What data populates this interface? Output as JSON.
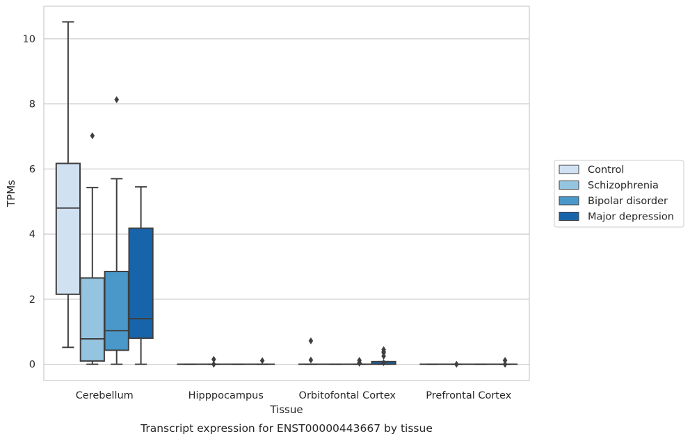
{
  "chart_data": {
    "type": "box",
    "title": "Transcript expression for ENST00000443667 by tissue",
    "xlabel": "Tissue",
    "ylabel": "TPMs",
    "ylim": [
      -0.5,
      11.0
    ],
    "yticks": [
      0,
      2,
      4,
      6,
      8,
      10
    ],
    "grid": true,
    "legend_position": "right",
    "categories": [
      "Cerebellum",
      "Hipppocampus",
      "Orbitofontal Cortex",
      "Prefrontal Cortex"
    ],
    "series": [
      {
        "name": "Control",
        "color": "#d0e1f2",
        "boxes": [
          {
            "whislo": 0.52,
            "q1": 2.15,
            "med": 4.8,
            "q3": 6.17,
            "whishi": 10.52,
            "fliers": []
          },
          {
            "whislo": 0,
            "q1": 0,
            "med": 0,
            "q3": 0,
            "whishi": 0,
            "fliers": []
          },
          {
            "whislo": 0,
            "q1": 0,
            "med": 0,
            "q3": 0,
            "whishi": 0,
            "fliers": [
              0.72,
              0.13
            ]
          },
          {
            "whislo": 0,
            "q1": 0,
            "med": 0,
            "q3": 0,
            "whishi": 0,
            "fliers": []
          }
        ]
      },
      {
        "name": "Schizophrenia",
        "color": "#94c4df",
        "boxes": [
          {
            "whislo": 0.0,
            "q1": 0.1,
            "med": 0.78,
            "q3": 2.65,
            "whishi": 5.43,
            "fliers": [
              7.02
            ]
          },
          {
            "whislo": 0,
            "q1": 0,
            "med": 0,
            "q3": 0,
            "whishi": 0,
            "fliers": [
              0.15,
              0.0
            ]
          },
          {
            "whislo": 0,
            "q1": 0,
            "med": 0,
            "q3": 0,
            "whishi": 0,
            "fliers": []
          },
          {
            "whislo": 0,
            "q1": 0,
            "med": 0,
            "q3": 0,
            "whishi": 0,
            "fliers": [
              0.0
            ]
          }
        ]
      },
      {
        "name": "Bipolar disorder",
        "color": "#4a98c9",
        "boxes": [
          {
            "whislo": 0.0,
            "q1": 0.43,
            "med": 1.03,
            "q3": 2.85,
            "whishi": 5.7,
            "fliers": [
              8.13
            ]
          },
          {
            "whislo": 0,
            "q1": 0,
            "med": 0,
            "q3": 0,
            "whishi": 0,
            "fliers": []
          },
          {
            "whislo": 0,
            "q1": 0,
            "med": 0,
            "q3": 0,
            "whishi": 0,
            "fliers": [
              0.12,
              0.05,
              0.03
            ]
          },
          {
            "whislo": 0,
            "q1": 0,
            "med": 0,
            "q3": 0,
            "whishi": 0,
            "fliers": []
          }
        ]
      },
      {
        "name": "Major depression",
        "color": "#1764ab",
        "boxes": [
          {
            "whislo": 0.0,
            "q1": 0.8,
            "med": 1.4,
            "q3": 4.18,
            "whishi": 5.45,
            "fliers": []
          },
          {
            "whislo": 0,
            "q1": 0,
            "med": 0,
            "q3": 0,
            "whishi": 0,
            "fliers": [
              0.11
            ]
          },
          {
            "whislo": 0,
            "q1": 0,
            "med": 0,
            "q3": 0.08,
            "whishi": 0.08,
            "fliers": [
              0.35,
              0.05,
              0.45,
              0.38,
              0.25
            ]
          },
          {
            "whislo": 0,
            "q1": 0,
            "med": 0,
            "q3": 0,
            "whishi": 0,
            "fliers": [
              0.12,
              0.0
            ]
          }
        ]
      }
    ]
  }
}
